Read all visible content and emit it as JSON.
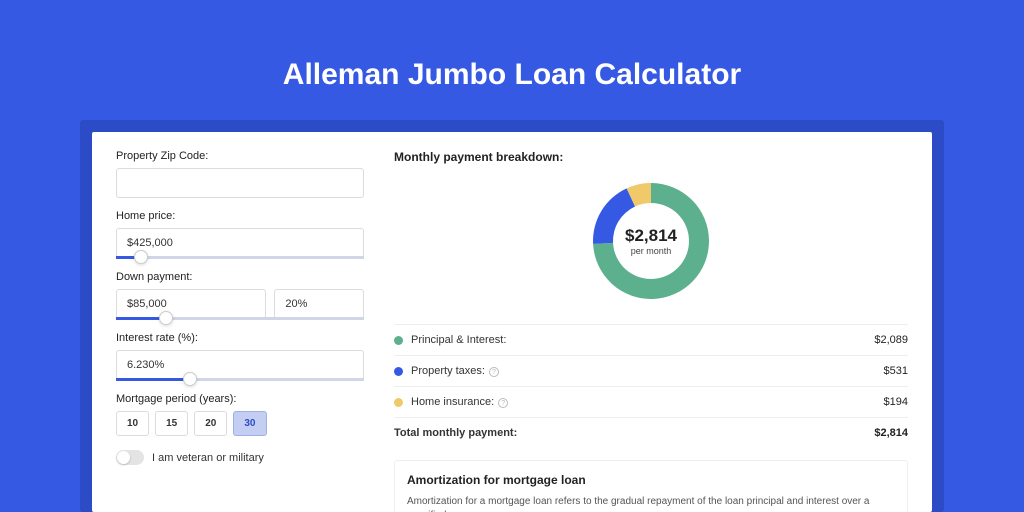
{
  "title": "Alleman Jumbo Loan Calculator",
  "colors": {
    "page_bg": "#3659e3",
    "shadow_bg": "#2b4bc7",
    "card_bg": "#ffffff",
    "slider_fill": "#3659e3"
  },
  "form": {
    "zip": {
      "label": "Property Zip Code:",
      "value": ""
    },
    "home_price": {
      "label": "Home price:",
      "value": "$425,000",
      "slider_pct": 10
    },
    "down_payment": {
      "label": "Down payment:",
      "value": "$85,000",
      "pct": "20%",
      "slider_pct": 20
    },
    "interest": {
      "label": "Interest rate (%):",
      "value": "6.230%",
      "slider_pct": 30
    },
    "period": {
      "label": "Mortgage period (years):",
      "options": [
        "10",
        "15",
        "20",
        "30"
      ],
      "selected": "30"
    },
    "veteran": {
      "label": "I am veteran or military",
      "on": false
    }
  },
  "breakdown": {
    "title": "Monthly payment breakdown:",
    "donut": {
      "center_amount": "$2,814",
      "center_sub": "per month",
      "segments": [
        {
          "label": "Principal & Interest:",
          "value": "$2,089",
          "color": "#5cb08e",
          "pct": 74.2
        },
        {
          "label": "Property taxes:",
          "value": "$531",
          "color": "#3659e3",
          "pct": 18.9,
          "info": true
        },
        {
          "label": "Home insurance:",
          "value": "$194",
          "color": "#f0c96a",
          "pct": 6.9,
          "info": true
        }
      ]
    },
    "total": {
      "label": "Total monthly payment:",
      "value": "$2,814"
    }
  },
  "amort": {
    "title": "Amortization for mortgage loan",
    "text": "Amortization for a mortgage loan refers to the gradual repayment of the loan principal and interest over a specified"
  }
}
